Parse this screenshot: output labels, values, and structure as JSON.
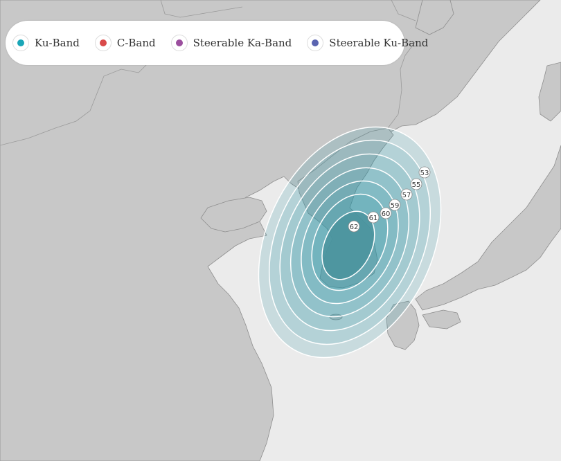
{
  "legend": {
    "items": [
      {
        "label": "Ku-Band",
        "color": "#1aa6b7"
      },
      {
        "label": "C-Band",
        "color": "#d94a4a"
      },
      {
        "label": "Steerable Ka-Band",
        "color": "#9b4f9e"
      },
      {
        "label": "Steerable Ku-Band",
        "color": "#5a64b0"
      }
    ]
  },
  "map": {
    "land_color": "#c8c8c8",
    "sea_color": "#ebebeb",
    "coverage_color": "#2a94a4",
    "core_color": "#4a939e"
  },
  "contours": {
    "labels": [
      "53",
      "55",
      "57",
      "59",
      "60",
      "61",
      "62"
    ]
  }
}
